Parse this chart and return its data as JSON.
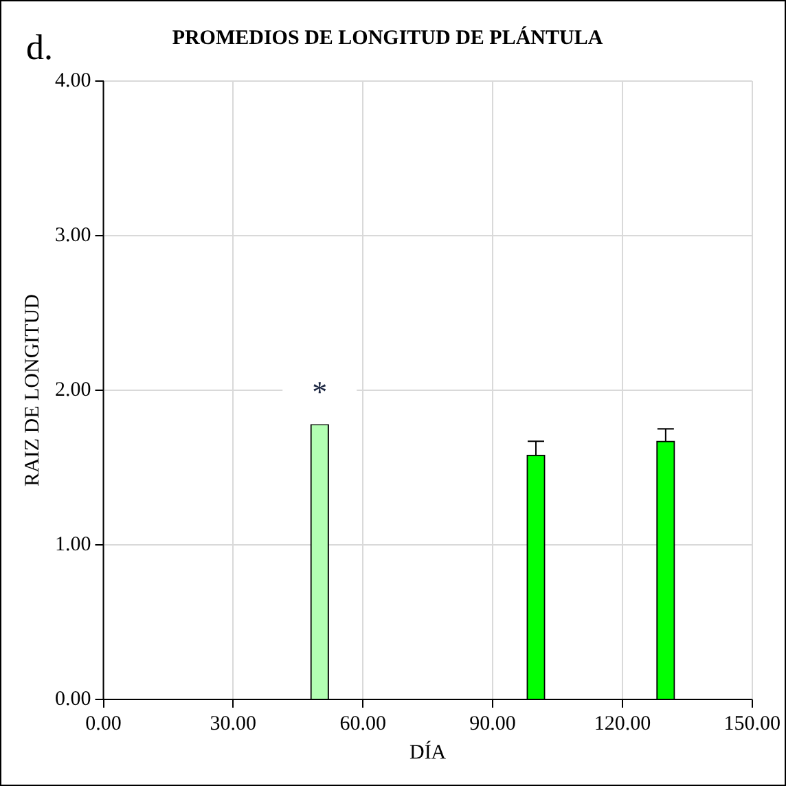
{
  "chart_data": {
    "type": "bar",
    "title": "PROMEDIOS DE LONGITUD DE PLÁNTULA",
    "xlabel": "DÍA",
    "ylabel": "RAIZ DE LONGITUD",
    "x": [
      50,
      100,
      130
    ],
    "values": [
      1.78,
      1.58,
      1.67
    ],
    "colors": [
      "#b3ffb3",
      "#00ff00",
      "#00ff00"
    ],
    "errors": [
      null,
      0.09,
      0.08
    ],
    "xlim": [
      0,
      150
    ],
    "xticks": [
      {
        "value": 0,
        "label": "0.00"
      },
      {
        "value": 30,
        "label": "30.00"
      },
      {
        "value": 60,
        "label": "60.00"
      },
      {
        "value": 90,
        "label": "90.00"
      },
      {
        "value": 120,
        "label": "120.00"
      },
      {
        "value": 150,
        "label": "150.00"
      }
    ],
    "ylim": [
      0,
      4
    ],
    "yticks": [
      {
        "value": 0,
        "label": "0.00"
      },
      {
        "value": 1,
        "label": "1.00"
      },
      {
        "value": 2,
        "label": "2.00"
      },
      {
        "value": 3,
        "label": "3.00"
      },
      {
        "value": 4,
        "label": "4.00"
      }
    ],
    "grid": true,
    "annotations": [
      "d.",
      {
        "text": "*",
        "x": 50,
        "y": 1.78
      }
    ]
  }
}
